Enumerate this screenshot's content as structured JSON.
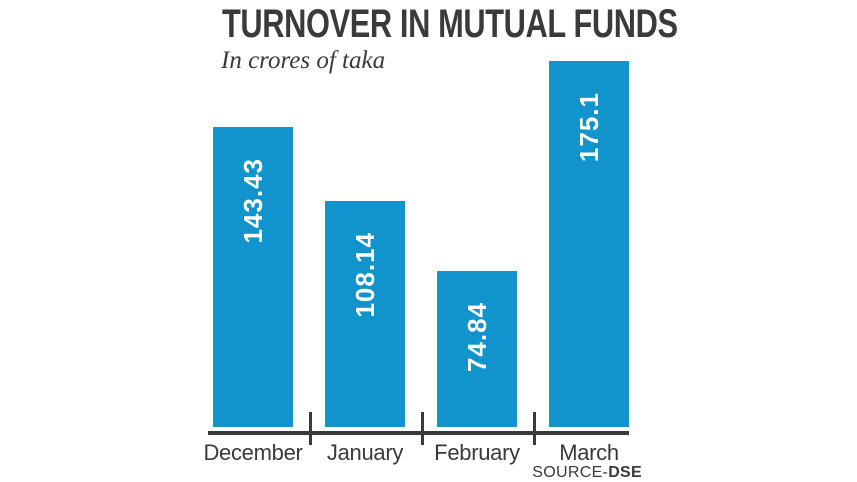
{
  "header": {
    "title": "TURNOVER IN MUTUAL FUNDS",
    "subtitle": "In crores of taka"
  },
  "source": {
    "prefix": "SOURCE-",
    "name": "DSE"
  },
  "colors": {
    "bar": "#1193cb",
    "ink": "#3a3a3c",
    "value_label": "#ffffff"
  },
  "chart_data": {
    "type": "bar",
    "title": "TURNOVER IN MUTUAL FUNDS",
    "subtitle": "In crores of taka",
    "unit": "crores of taka",
    "categories": [
      "December",
      "January",
      "February",
      "March"
    ],
    "values": [
      143.43,
      108.14,
      74.84,
      175.1
    ],
    "value_labels": [
      "143.43",
      "108.14",
      "74.84",
      "175.1"
    ],
    "xlabel": "",
    "ylabel": "",
    "ylim": [
      0,
      205
    ],
    "grid": false,
    "legend": false,
    "bar_color": "#1193cb",
    "value_label_style": "white, bold, rotated 90deg, inside top of bar",
    "source": "SOURCE-DSE"
  }
}
